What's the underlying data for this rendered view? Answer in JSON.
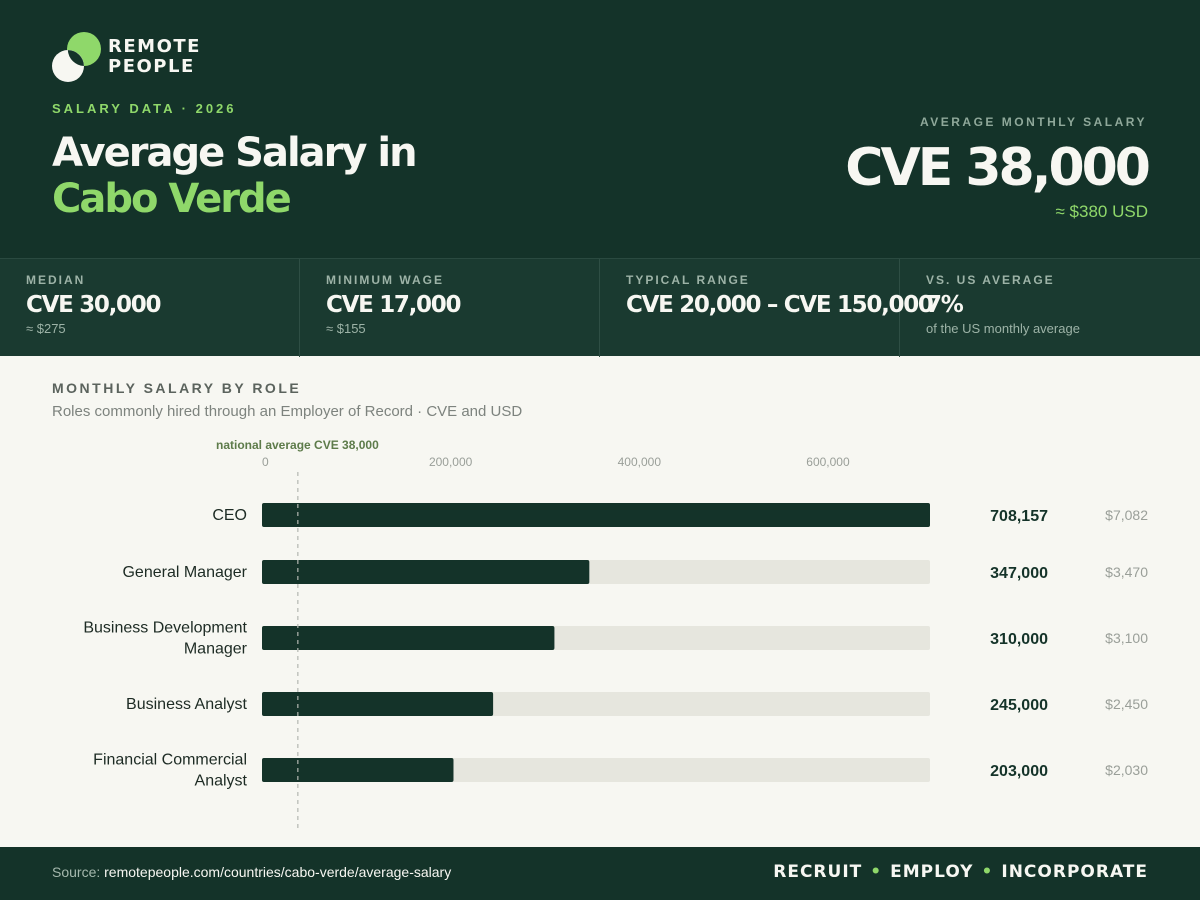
{
  "brand": {
    "line1": "REMOTE",
    "line2": "PEOPLE"
  },
  "header": {
    "eyebrow": "SALARY DATA · 2026",
    "title_line1": "Average Salary in",
    "title_line2": "Cabo Verde",
    "avg_label": "AVERAGE MONTHLY SALARY",
    "avg_value": "CVE 38,000",
    "avg_usd": "≈ $380 USD"
  },
  "stats": [
    {
      "label": "MEDIAN",
      "value": "CVE 30,000",
      "sub": "≈ $275"
    },
    {
      "label": "MINIMUM WAGE",
      "value": "CVE 17,000",
      "sub": "≈ $155"
    },
    {
      "label": "TYPICAL RANGE",
      "value": "CVE 20,000 – CVE 150,000",
      "sub": ""
    },
    {
      "label": "VS. US AVERAGE",
      "value": "7%",
      "sub": "of the US monthly average"
    }
  ],
  "chart": {
    "title": "MONTHLY SALARY BY ROLE",
    "subtitle": "Roles commonly hired through an Employer of Record · CVE and USD"
  },
  "chart_data": {
    "type": "bar",
    "orientation": "horizontal",
    "categories": [
      "CEO",
      "General Manager",
      "Business Development Manager",
      "Business Analyst",
      "Financial Commercial Analyst"
    ],
    "values": [
      708157,
      347000,
      310000,
      245000,
      203000
    ],
    "value_labels": [
      "708,157",
      "347,000",
      "310,000",
      "245,000",
      "203,000"
    ],
    "usd_labels": [
      "$7,082",
      "$3,470",
      "$3,100",
      "$2,450",
      "$2,030"
    ],
    "xlim": [
      0,
      708157
    ],
    "ticks": [
      0,
      200000,
      400000,
      600000
    ],
    "tick_labels": [
      "0",
      "200,000",
      "400,000",
      "600,000"
    ],
    "reference_line": {
      "value": 38000,
      "label": "national average CVE 38,000"
    },
    "bar_color": "#143329",
    "track_color": "#e6e6de"
  },
  "footer": {
    "source_prefix": "Source:",
    "source_url": "remotepeople.com/countries/cabo-verde/average-salary",
    "tags": [
      "RECRUIT",
      "EMPLOY",
      "INCORPORATE"
    ]
  }
}
